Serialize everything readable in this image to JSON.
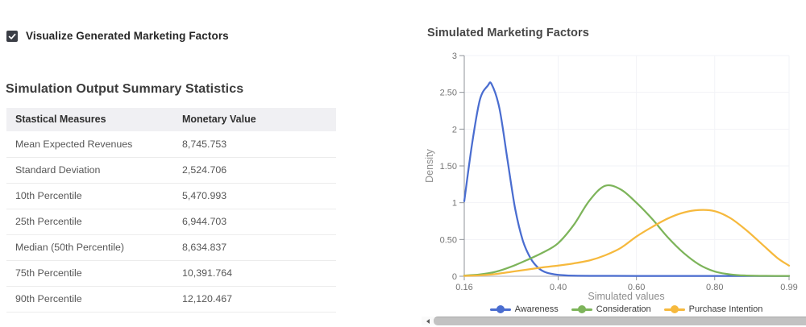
{
  "left_panel": {
    "checkbox": {
      "label": "Visualize Generated Marketing Factors",
      "checked": true
    },
    "heading": "Simulation Output Summary Statistics",
    "table": {
      "columns": [
        "Stastical Measures",
        "Monetary Value"
      ],
      "rows": [
        {
          "measure": "Mean Expected Revenues",
          "value": "8,745.753"
        },
        {
          "measure": "Standard Deviation",
          "value": "2,524.706"
        },
        {
          "measure": "10th Percentile",
          "value": "5,470.993"
        },
        {
          "measure": "25th Percentile",
          "value": "6,944.703"
        },
        {
          "measure": "Median (50th Percentile)",
          "value": "8,634.837"
        },
        {
          "measure": "75th Percentile",
          "value": "10,391.764"
        },
        {
          "measure": "90th Percentile",
          "value": "12,120.467"
        }
      ]
    }
  },
  "chart_data": {
    "type": "line",
    "title": "Simulated Marketing Factors",
    "xlabel": "Simulated values",
    "ylabel": "Density",
    "xlim": [
      0.16,
      0.99
    ],
    "ylim": [
      0,
      3
    ],
    "x_ticks": [
      0.16,
      0.4,
      0.6,
      0.8,
      0.99
    ],
    "x_tick_labels": [
      "0.16",
      "0.40",
      "0.60",
      "0.80",
      "0.99"
    ],
    "y_ticks": [
      0,
      0.5,
      1,
      1.5,
      2,
      2.5,
      3
    ],
    "y_tick_labels": [
      "0",
      "0.50",
      "1",
      "1.50",
      "2",
      "2.50",
      "3"
    ],
    "grid": true,
    "legend_position": "bottom",
    "series": [
      {
        "name": "Awareness",
        "color": "#4a6dd0",
        "points": [
          [
            0.16,
            1.02
          ],
          [
            0.18,
            1.8
          ],
          [
            0.2,
            2.4
          ],
          [
            0.22,
            2.59
          ],
          [
            0.23,
            2.61
          ],
          [
            0.25,
            2.28
          ],
          [
            0.27,
            1.6
          ],
          [
            0.29,
            0.92
          ],
          [
            0.31,
            0.48
          ],
          [
            0.33,
            0.24
          ],
          [
            0.35,
            0.11
          ],
          [
            0.37,
            0.05
          ],
          [
            0.4,
            0.02
          ],
          [
            0.44,
            0.008
          ],
          [
            0.5,
            0.005
          ],
          [
            0.6,
            0.004
          ],
          [
            0.75,
            0.004
          ],
          [
            0.99,
            0.004
          ]
        ]
      },
      {
        "name": "Consideration",
        "color": "#7db45a",
        "points": [
          [
            0.16,
            0.01
          ],
          [
            0.2,
            0.025
          ],
          [
            0.24,
            0.06
          ],
          [
            0.28,
            0.13
          ],
          [
            0.32,
            0.22
          ],
          [
            0.36,
            0.32
          ],
          [
            0.4,
            0.45
          ],
          [
            0.44,
            0.7
          ],
          [
            0.48,
            1.03
          ],
          [
            0.52,
            1.23
          ],
          [
            0.56,
            1.18
          ],
          [
            0.6,
            1.0
          ],
          [
            0.64,
            0.78
          ],
          [
            0.68,
            0.53
          ],
          [
            0.72,
            0.32
          ],
          [
            0.76,
            0.16
          ],
          [
            0.8,
            0.065
          ],
          [
            0.84,
            0.025
          ],
          [
            0.88,
            0.01
          ],
          [
            0.93,
            0.005
          ],
          [
            0.99,
            0.004
          ]
        ]
      },
      {
        "name": "Purchase Intention",
        "color": "#f6b93d",
        "points": [
          [
            0.16,
            0.005
          ],
          [
            0.2,
            0.012
          ],
          [
            0.24,
            0.03
          ],
          [
            0.28,
            0.06
          ],
          [
            0.32,
            0.09
          ],
          [
            0.36,
            0.12
          ],
          [
            0.4,
            0.145
          ],
          [
            0.44,
            0.175
          ],
          [
            0.48,
            0.215
          ],
          [
            0.52,
            0.285
          ],
          [
            0.56,
            0.385
          ],
          [
            0.6,
            0.54
          ],
          [
            0.64,
            0.67
          ],
          [
            0.68,
            0.785
          ],
          [
            0.72,
            0.865
          ],
          [
            0.76,
            0.9
          ],
          [
            0.8,
            0.885
          ],
          [
            0.84,
            0.79
          ],
          [
            0.88,
            0.63
          ],
          [
            0.92,
            0.44
          ],
          [
            0.96,
            0.25
          ],
          [
            0.99,
            0.145
          ]
        ]
      }
    ]
  },
  "colors": {
    "checkbox": "#3b3e46",
    "table_header_bg": "#f0f0f3",
    "axis_text": "#757575",
    "grid_line": "#f2f3f7",
    "scrollbar_thumb": "#c2c2c2"
  }
}
